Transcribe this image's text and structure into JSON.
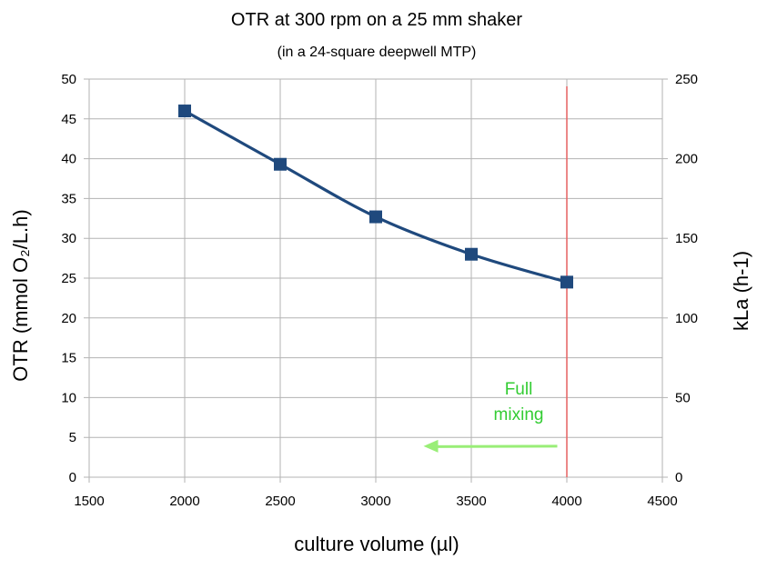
{
  "chart_data": {
    "type": "line",
    "title": "OTR at 300 rpm on a 25 mm shaker",
    "subtitle": "(in a 24-square deepwell MTP)",
    "xlabel": "culture volume (µl)",
    "ylabel": "OTR (mmol O₂/L.h)",
    "y2label": "kLa (h-1)",
    "xlim": [
      1500,
      4500
    ],
    "ylim": [
      0,
      50
    ],
    "y2lim": [
      0,
      250
    ],
    "x_ticks": [
      "1500",
      "2000",
      "2500",
      "3000",
      "3500",
      "4000",
      "4500"
    ],
    "y_ticks": [
      "0",
      "5",
      "10",
      "15",
      "20",
      "25",
      "30",
      "35",
      "40",
      "45",
      "50"
    ],
    "y2_ticks": [
      "0",
      "50",
      "100",
      "150",
      "200",
      "250"
    ],
    "grid": true,
    "series": [
      {
        "x": [
          2000,
          2500,
          3000,
          3500,
          4000
        ],
        "y": [
          46.0,
          39.3,
          32.7,
          28.0,
          24.5
        ],
        "color": "#1f497d",
        "marker": "square"
      }
    ],
    "vline": {
      "x": 4000,
      "color": "#e86a6a"
    },
    "annotation": {
      "lines": [
        "Full",
        "mixing"
      ],
      "color": "#33cc33",
      "arrow_color": "#99ee77",
      "arrow_from_x": 3950,
      "arrow_to_x": 3250,
      "arrow_y": 3.9
    }
  }
}
